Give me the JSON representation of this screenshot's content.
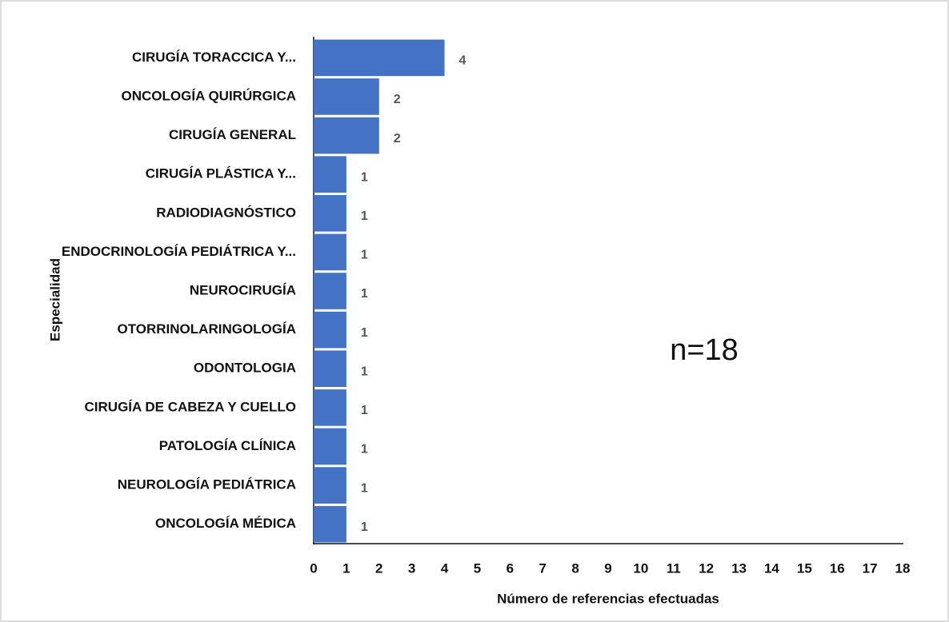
{
  "chart_data": {
    "type": "barh",
    "categories": [
      "CIRUGÍA TORACCICA Y...",
      "ONCOLOGÍA QUIRÚRGICA",
      "CIRUGÍA GENERAL",
      "CIRUGÍA PLÁSTICA Y...",
      "RADIODIAGNÓSTICO",
      "ENDOCRINOLOGÍA PEDIÁTRICA Y...",
      "NEUROCIRUGÍA",
      "OTORRINOLARINGOLOGÍA",
      "ODONTOLOGIA",
      "CIRUGÍA DE CABEZA Y CUELLO",
      "PATOLOGÍA CLÍNICA",
      "NEUROLOGÍA PEDIÁTRICA",
      "ONCOLOGÍA MÉDICA"
    ],
    "values": [
      4,
      2,
      2,
      1,
      1,
      1,
      1,
      1,
      1,
      1,
      1,
      1,
      1
    ],
    "color": "#4472c4",
    "xlabel": "Número de referencias efectuadas",
    "ylabel": "Especialidad",
    "annotation": "n=18",
    "xlim": [
      0,
      18
    ],
    "xticks": [
      0,
      1,
      2,
      3,
      4,
      5,
      6,
      7,
      8,
      9,
      10,
      11,
      12,
      13,
      14,
      15,
      16,
      17,
      18
    ],
    "grid": false
  }
}
